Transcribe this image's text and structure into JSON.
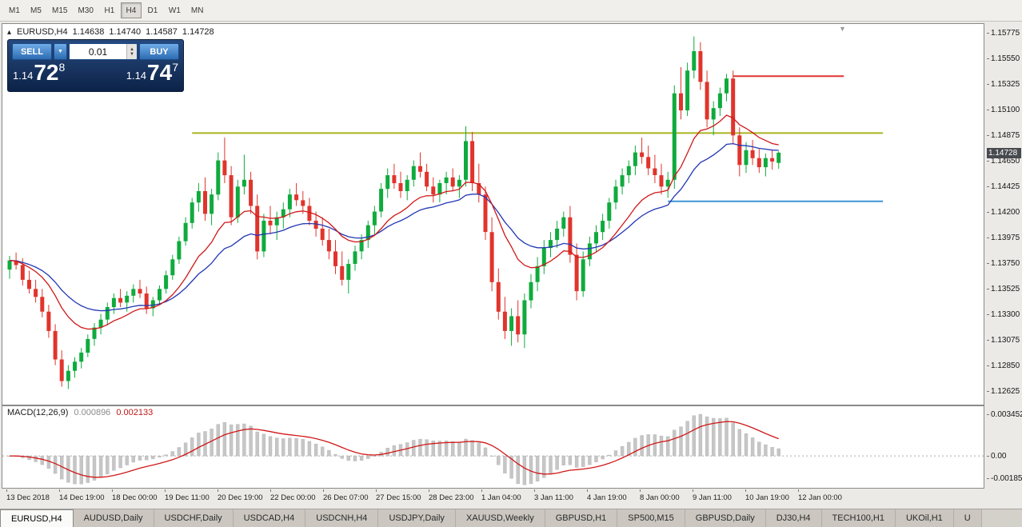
{
  "toolbar": {
    "timeframes": [
      "M1",
      "M5",
      "M15",
      "M30",
      "H1",
      "H4",
      "D1",
      "W1",
      "MN"
    ],
    "active_timeframe": "H4"
  },
  "chart": {
    "symbol_period": "EURUSD,H4",
    "open": "1.14638",
    "high": "1.14740",
    "low": "1.14587",
    "close": "1.14728",
    "current_price": "1.14728"
  },
  "trade_panel": {
    "sell_label": "SELL",
    "buy_label": "BUY",
    "volume": "0.01",
    "sell_price": {
      "prefix": "1.14",
      "big": "72",
      "pip": "8"
    },
    "buy_price": {
      "prefix": "1.14",
      "big": "74",
      "pip": "7"
    }
  },
  "macd": {
    "label": "MACD(12,26,9)",
    "value": "0.000896",
    "signal_value": "0.002133",
    "axis": [
      "0.003452",
      "0.00",
      "-0.001851"
    ]
  },
  "price_axis": [
    "1.15775",
    "1.15550",
    "1.15325",
    "1.15100",
    "1.14875",
    "1.14650",
    "1.14425",
    "1.14200",
    "1.13975",
    "1.13750",
    "1.13525",
    "1.13300",
    "1.13075",
    "1.12850",
    "1.12625"
  ],
  "time_axis": [
    "13 Dec 2018",
    "14 Dec 19:00",
    "18 Dec 00:00",
    "19 Dec 11:00",
    "20 Dec 19:00",
    "22 Dec 00:00",
    "26 Dec 07:00",
    "27 Dec 15:00",
    "28 Dec 23:00",
    "1 Jan 04:00",
    "3 Jan 11:00",
    "4 Jan 19:00",
    "8 Jan 00:00",
    "9 Jan 11:00",
    "10 Jan 19:00",
    "12 Jan 00:00"
  ],
  "tabs": [
    "EURUSD,H4",
    "AUDUSD,Daily",
    "USDCHF,Daily",
    "USDCAD,H4",
    "USDCNH,H4",
    "USDJPY,Daily",
    "XAUUSD,Weekly",
    "GBPUSD,H1",
    "SP500,M15",
    "GBPUSD,Daily",
    "DJ30,H4",
    "TECH100,H1",
    "UKOil,H1",
    "U"
  ],
  "active_tab": "EURUSD,H4",
  "colors": {
    "up": "#0fab3d",
    "down": "#e0342c",
    "ma_fast": "#d01818",
    "ma_slow": "#2336b4",
    "hline_yellow": "#aab41e",
    "hline_red": "#e23434",
    "hline_blue": "#3d97d8",
    "macd_hist": "#c6c6c6",
    "macd_signal": "#d01818"
  },
  "chart_data": {
    "type": "candlestick",
    "symbol": "EURUSD",
    "timeframe": "H4",
    "price_range": [
      1.12625,
      1.15775
    ],
    "candles": [
      [
        1.137,
        1.1382,
        1.1362,
        1.1378
      ],
      [
        1.1378,
        1.1385,
        1.137,
        1.1374
      ],
      [
        1.1374,
        1.138,
        1.1356,
        1.1361
      ],
      [
        1.1361,
        1.1369,
        1.1349,
        1.1353
      ],
      [
        1.1353,
        1.1361,
        1.1341,
        1.1346
      ],
      [
        1.1346,
        1.1353,
        1.1328,
        1.1333
      ],
      [
        1.1333,
        1.1339,
        1.131,
        1.1316
      ],
      [
        1.1316,
        1.1322,
        1.1286,
        1.1291
      ],
      [
        1.1291,
        1.1299,
        1.1267,
        1.1272
      ],
      [
        1.1272,
        1.1286,
        1.1265,
        1.1281
      ],
      [
        1.1281,
        1.1293,
        1.1275,
        1.1289
      ],
      [
        1.1289,
        1.1301,
        1.1283,
        1.1297
      ],
      [
        1.1297,
        1.1313,
        1.1293,
        1.1309
      ],
      [
        1.1309,
        1.1323,
        1.1303,
        1.1319
      ],
      [
        1.1319,
        1.1331,
        1.1313,
        1.1326
      ],
      [
        1.1326,
        1.1341,
        1.1321,
        1.1337
      ],
      [
        1.1337,
        1.1349,
        1.1331,
        1.1345
      ],
      [
        1.1345,
        1.1353,
        1.1337,
        1.1341
      ],
      [
        1.1341,
        1.1351,
        1.1333,
        1.1347
      ],
      [
        1.1347,
        1.1357,
        1.1341,
        1.1353
      ],
      [
        1.1353,
        1.1361,
        1.1345,
        1.1349
      ],
      [
        1.1349,
        1.1355,
        1.1331,
        1.1336
      ],
      [
        1.1336,
        1.1346,
        1.1329,
        1.1343
      ],
      [
        1.1343,
        1.1356,
        1.1339,
        1.1353
      ],
      [
        1.1353,
        1.1369,
        1.1349,
        1.1365
      ],
      [
        1.1365,
        1.1383,
        1.1361,
        1.1379
      ],
      [
        1.1379,
        1.1399,
        1.1375,
        1.1395
      ],
      [
        1.1395,
        1.1416,
        1.1391,
        1.1411
      ],
      [
        1.1411,
        1.1433,
        1.1406,
        1.1429
      ],
      [
        1.1429,
        1.1446,
        1.1421,
        1.1439
      ],
      [
        1.1439,
        1.1451,
        1.1413,
        1.1419
      ],
      [
        1.1419,
        1.1441,
        1.1409,
        1.1436
      ],
      [
        1.1436,
        1.1473,
        1.1431,
        1.1466
      ],
      [
        1.1466,
        1.1486,
        1.1446,
        1.1453
      ],
      [
        1.1453,
        1.1461,
        1.1409,
        1.1416
      ],
      [
        1.1416,
        1.1449,
        1.1411,
        1.1443
      ],
      [
        1.1443,
        1.1471,
        1.1436,
        1.1449
      ],
      [
        1.1449,
        1.1456,
        1.1419,
        1.1426
      ],
      [
        1.1426,
        1.1436,
        1.1379,
        1.1386
      ],
      [
        1.1386,
        1.1419,
        1.1381,
        1.1413
      ],
      [
        1.1413,
        1.1426,
        1.1401,
        1.1409
      ],
      [
        1.1409,
        1.1421,
        1.1396,
        1.1416
      ],
      [
        1.1416,
        1.1429,
        1.1406,
        1.1423
      ],
      [
        1.1423,
        1.1441,
        1.1416,
        1.1436
      ],
      [
        1.1436,
        1.1446,
        1.1426,
        1.1431
      ],
      [
        1.1431,
        1.1439,
        1.1419,
        1.1426
      ],
      [
        1.1426,
        1.1433,
        1.1409,
        1.1413
      ],
      [
        1.1413,
        1.1421,
        1.1399,
        1.1406
      ],
      [
        1.1406,
        1.1416,
        1.1391,
        1.1396
      ],
      [
        1.1396,
        1.1406,
        1.1379,
        1.1386
      ],
      [
        1.1386,
        1.1396,
        1.1366,
        1.1373
      ],
      [
        1.1373,
        1.1386,
        1.1356,
        1.1361
      ],
      [
        1.1361,
        1.1379,
        1.1349,
        1.1375
      ],
      [
        1.1375,
        1.1391,
        1.1369,
        1.1386
      ],
      [
        1.1386,
        1.1401,
        1.1379,
        1.1396
      ],
      [
        1.1396,
        1.1413,
        1.1389,
        1.1409
      ],
      [
        1.1409,
        1.1426,
        1.1401,
        1.1421
      ],
      [
        1.1421,
        1.1446,
        1.1416,
        1.1441
      ],
      [
        1.1441,
        1.1459,
        1.1433,
        1.1453
      ],
      [
        1.1453,
        1.1463,
        1.1441,
        1.1446
      ],
      [
        1.1446,
        1.1456,
        1.1433,
        1.1439
      ],
      [
        1.1439,
        1.1453,
        1.1431,
        1.1449
      ],
      [
        1.1449,
        1.1466,
        1.1443,
        1.1461
      ],
      [
        1.1461,
        1.1473,
        1.1451,
        1.1456
      ],
      [
        1.1456,
        1.1463,
        1.1439,
        1.1443
      ],
      [
        1.1443,
        1.1451,
        1.1429,
        1.1436
      ],
      [
        1.1436,
        1.1449,
        1.1429,
        1.1446
      ],
      [
        1.1446,
        1.1456,
        1.1436,
        1.1451
      ],
      [
        1.1451,
        1.1459,
        1.1439,
        1.1443
      ],
      [
        1.1443,
        1.1453,
        1.1433,
        1.1449
      ],
      [
        1.1449,
        1.1496,
        1.1443,
        1.1483
      ],
      [
        1.1483,
        1.1491,
        1.1439,
        1.1446
      ],
      [
        1.1446,
        1.1463,
        1.1429,
        1.1436
      ],
      [
        1.1436,
        1.1443,
        1.1396,
        1.1403
      ],
      [
        1.1403,
        1.1416,
        1.1351,
        1.1359
      ],
      [
        1.1359,
        1.1371,
        1.1326,
        1.1333
      ],
      [
        1.1333,
        1.1346,
        1.1309,
        1.1316
      ],
      [
        1.1316,
        1.1336,
        1.1303,
        1.1329
      ],
      [
        1.1329,
        1.1343,
        1.1306,
        1.1313
      ],
      [
        1.1313,
        1.1349,
        1.1301,
        1.1343
      ],
      [
        1.1343,
        1.1366,
        1.1336,
        1.1359
      ],
      [
        1.1359,
        1.1381,
        1.1351,
        1.1373
      ],
      [
        1.1373,
        1.1396,
        1.1366,
        1.1389
      ],
      [
        1.1389,
        1.1403,
        1.1381,
        1.1396
      ],
      [
        1.1396,
        1.1413,
        1.1389,
        1.1406
      ],
      [
        1.1406,
        1.1421,
        1.1399,
        1.1416
      ],
      [
        1.1416,
        1.1426,
        1.1376,
        1.1383
      ],
      [
        1.1383,
        1.1393,
        1.1343,
        1.1351
      ],
      [
        1.1351,
        1.1386,
        1.1346,
        1.1379
      ],
      [
        1.1379,
        1.1399,
        1.1373,
        1.1393
      ],
      [
        1.1393,
        1.1409,
        1.1386,
        1.1403
      ],
      [
        1.1403,
        1.1419,
        1.1396,
        1.1413
      ],
      [
        1.1413,
        1.1433,
        1.1406,
        1.1429
      ],
      [
        1.1429,
        1.1449,
        1.1423,
        1.1443
      ],
      [
        1.1443,
        1.1459,
        1.1436,
        1.1453
      ],
      [
        1.1453,
        1.1466,
        1.1446,
        1.1461
      ],
      [
        1.1461,
        1.1479,
        1.1453,
        1.1473
      ],
      [
        1.1473,
        1.1486,
        1.1463,
        1.1469
      ],
      [
        1.1469,
        1.1479,
        1.1453,
        1.1459
      ],
      [
        1.1459,
        1.1471,
        1.1446,
        1.1453
      ],
      [
        1.1453,
        1.1463,
        1.1436,
        1.1443
      ],
      [
        1.1443,
        1.1456,
        1.1433,
        1.1449
      ],
      [
        1.1449,
        1.1532,
        1.1441,
        1.1525
      ],
      [
        1.1525,
        1.1548,
        1.1502,
        1.151
      ],
      [
        1.151,
        1.1552,
        1.1505,
        1.1545
      ],
      [
        1.1545,
        1.1575,
        1.1538,
        1.1562
      ],
      [
        1.1562,
        1.157,
        1.1528,
        1.1535
      ],
      [
        1.1535,
        1.1545,
        1.1495,
        1.1502
      ],
      [
        1.1502,
        1.1518,
        1.1488,
        1.1512
      ],
      [
        1.1512,
        1.153,
        1.1505,
        1.1525
      ],
      [
        1.1525,
        1.1542,
        1.1518,
        1.1538
      ],
      [
        1.1538,
        1.1545,
        1.148,
        1.1488
      ],
      [
        1.1488,
        1.1495,
        1.1452,
        1.1462
      ],
      [
        1.1462,
        1.1482,
        1.1455,
        1.1475
      ],
      [
        1.1475,
        1.1484,
        1.1462,
        1.1468
      ],
      [
        1.1468,
        1.1476,
        1.1455,
        1.146
      ],
      [
        1.146,
        1.1472,
        1.1452,
        1.1468
      ],
      [
        1.1468,
        1.1475,
        1.1458,
        1.1465
      ],
      [
        1.14638,
        1.1474,
        1.14587,
        1.14728
      ]
    ],
    "hlines": [
      {
        "price": 1.154,
        "from_bar": 111,
        "to_bar": 128,
        "color": "#e23434"
      },
      {
        "price": 1.149,
        "from_bar": 28,
        "to_bar": 134,
        "color": "#aab41e"
      },
      {
        "price": 1.143,
        "from_bar": 101,
        "to_bar": 134,
        "color": "#3d97d8"
      }
    ]
  }
}
